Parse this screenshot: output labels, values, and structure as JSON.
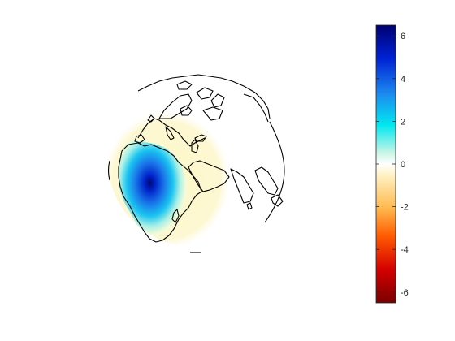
{
  "map": {
    "projection": "orthographic",
    "field_region": "Africa",
    "field_peak": 6.4,
    "coastline_color": "#000000"
  },
  "colorbar": {
    "ticks": [
      6,
      4,
      2,
      0,
      -2,
      -4,
      -6
    ],
    "tick_labels": [
      "6",
      "4",
      "2",
      "0",
      "-2",
      "-4",
      "-6"
    ],
    "range": [
      -6.5,
      6.5
    ],
    "colors": [
      "#7a0000",
      "#d40000",
      "#ff5a00",
      "#ffb84d",
      "#fff2c4",
      "#ffffff",
      "#c8f5e6",
      "#00e8f0",
      "#1d8cf0",
      "#0022d4",
      "#000070"
    ]
  }
}
